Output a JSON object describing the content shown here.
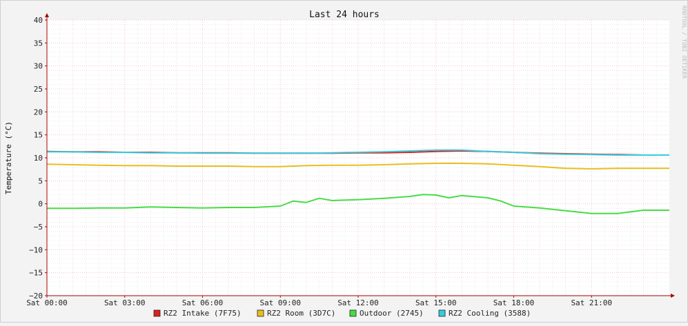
{
  "chart_data": {
    "type": "line",
    "title": "Last 24 hours",
    "ylabel": "Temperature (°C)",
    "watermark": "RRDTOOL / TOBI OETIKER",
    "ylim": [
      -20,
      40
    ],
    "xlim": [
      0,
      24
    ],
    "yticks": [
      40,
      35,
      30,
      25,
      20,
      15,
      10,
      5,
      0,
      -5,
      -10,
      -15,
      -20
    ],
    "ytick_labels": [
      "40",
      "35",
      "30",
      "25",
      "20",
      "15",
      "10",
      "5",
      "0",
      "−5",
      "−10",
      "−15",
      "−20"
    ],
    "xticks": [
      0,
      3,
      6,
      9,
      12,
      15,
      18,
      21
    ],
    "xtick_labels": [
      "Sat 00:00",
      "Sat 03:00",
      "Sat 06:00",
      "Sat 09:00",
      "Sat 12:00",
      "Sat 15:00",
      "Sat 18:00",
      "Sat 21:00"
    ],
    "grid": true,
    "legend_position": "bottom",
    "colors": {
      "background": "#f3f3f3",
      "canvas": "#ffffff",
      "grid_minor": "#dddddd",
      "grid_major": "#f2b8b8",
      "axis": "#aa0000"
    },
    "series": [
      {
        "name": "RZ2 Intake (7F75)",
        "color": "#dd2020",
        "x": [
          0,
          1,
          2,
          3,
          4,
          5,
          6,
          7,
          8,
          9,
          10,
          11,
          12,
          13,
          14,
          15,
          16,
          17,
          18,
          19,
          20,
          21,
          22,
          23,
          24
        ],
        "values": [
          11.4,
          11.3,
          11.3,
          11.2,
          11.2,
          11.1,
          11.1,
          11.1,
          11.0,
          11.0,
          11.0,
          11.0,
          11.1,
          11.1,
          11.2,
          11.4,
          11.5,
          11.4,
          11.2,
          11.0,
          10.9,
          10.8,
          10.7,
          10.6,
          10.6
        ]
      },
      {
        "name": "RZ2 Room (3D7C)",
        "color": "#e8be20",
        "x": [
          0,
          1,
          2,
          3,
          4,
          5,
          6,
          7,
          8,
          9,
          10,
          11,
          12,
          13,
          14,
          15,
          16,
          17,
          18,
          19,
          20,
          21,
          22,
          23,
          24
        ],
        "values": [
          8.6,
          8.5,
          8.4,
          8.3,
          8.3,
          8.2,
          8.2,
          8.2,
          8.1,
          8.1,
          8.3,
          8.4,
          8.4,
          8.5,
          8.7,
          8.8,
          8.8,
          8.7,
          8.4,
          8.1,
          7.7,
          7.6,
          7.7,
          7.7,
          7.7
        ]
      },
      {
        "name": "Outdoor (2745)",
        "color": "#44dd44",
        "x": [
          0,
          1,
          2,
          3,
          4,
          5,
          6,
          7,
          8,
          9,
          9.5,
          10,
          10.5,
          11,
          12,
          13,
          14,
          14.5,
          15,
          15.5,
          16,
          17,
          17.5,
          18,
          19,
          20,
          21,
          22,
          23,
          24
        ],
        "values": [
          -1.0,
          -1.0,
          -0.9,
          -0.9,
          -0.7,
          -0.8,
          -0.9,
          -0.8,
          -0.8,
          -0.5,
          0.6,
          0.3,
          1.2,
          0.7,
          0.9,
          1.2,
          1.6,
          2.0,
          1.9,
          1.3,
          1.8,
          1.3,
          0.6,
          -0.5,
          -0.9,
          -1.5,
          -2.1,
          -2.1,
          -1.4,
          -1.4
        ]
      },
      {
        "name": "RZ2 Cooling (3588)",
        "color": "#33ccdd",
        "x": [
          0,
          1,
          2,
          3,
          4,
          5,
          6,
          7,
          8,
          9,
          10,
          11,
          12,
          13,
          14,
          15,
          16,
          17,
          18,
          19,
          20,
          21,
          22,
          23,
          24
        ],
        "values": [
          11.3,
          11.3,
          11.2,
          11.2,
          11.1,
          11.1,
          11.0,
          11.0,
          11.0,
          11.0,
          11.0,
          11.1,
          11.2,
          11.3,
          11.5,
          11.7,
          11.7,
          11.4,
          11.2,
          10.9,
          10.8,
          10.7,
          10.6,
          10.6,
          10.6
        ]
      }
    ]
  }
}
